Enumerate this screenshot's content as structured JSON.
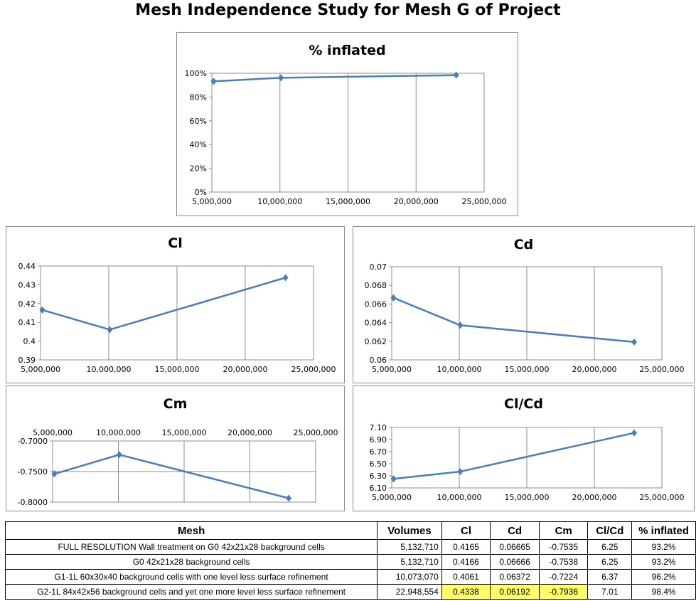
{
  "title": "Mesh Independence Study for Mesh G of Project",
  "chart_data": [
    {
      "id": "inflated",
      "type": "line",
      "title": "% inflated",
      "x": [
        5132710,
        5132710,
        10073070,
        22948554
      ],
      "values": [
        93.2,
        93.2,
        96.2,
        98.4
      ],
      "xlim": [
        5000000,
        25000000
      ],
      "xticks": [
        "5,000,000",
        "10,000,000",
        "15,000,000",
        "20,000,000",
        "25,000,000"
      ],
      "ylim": [
        0,
        100
      ],
      "yticks": [
        "0%",
        "20%",
        "40%",
        "60%",
        "80%",
        "100%"
      ],
      "color": "#4a7ebb"
    },
    {
      "id": "cl",
      "type": "line",
      "title": "Cl",
      "x": [
        5132710,
        5132710,
        10073070,
        22948554
      ],
      "values": [
        0.4165,
        0.4166,
        0.4061,
        0.4338
      ],
      "xlim": [
        5000000,
        25000000
      ],
      "xticks": [
        "5,000,000",
        "10,000,000",
        "15,000,000",
        "20,000,000",
        "25,000,000"
      ],
      "ylim": [
        0.39,
        0.44
      ],
      "yticks": [
        "0.39",
        "0.4",
        "0.41",
        "0.42",
        "0.43",
        "0.44"
      ],
      "color": "#4a7ebb"
    },
    {
      "id": "cd",
      "type": "line",
      "title": "Cd",
      "x": [
        5132710,
        5132710,
        10073070,
        22948554
      ],
      "values": [
        0.06665,
        0.06666,
        0.06372,
        0.06192
      ],
      "xlim": [
        5000000,
        25000000
      ],
      "xticks": [
        "5,000,000",
        "10,000,000",
        "15,000,000",
        "20,000,000",
        "25,000,000"
      ],
      "ylim": [
        0.06,
        0.07
      ],
      "yticks": [
        "0.06",
        "0.062",
        "0.064",
        "0.066",
        "0.068",
        "0.07"
      ],
      "color": "#4a7ebb"
    },
    {
      "id": "cm",
      "type": "line",
      "title": "Cm",
      "x": [
        5132710,
        5132710,
        10073070,
        22948554
      ],
      "values": [
        -0.7535,
        -0.7538,
        -0.7224,
        -0.7936
      ],
      "xlim": [
        5000000,
        25000000
      ],
      "xticks": [
        "5,000,000",
        "10,000,000",
        "15,000,000",
        "20,000,000",
        "25,000,000"
      ],
      "ylim": [
        -0.8,
        -0.7
      ],
      "yticks": [
        "-0.8000",
        "-0.7500",
        "-0.7000"
      ],
      "color": "#4a7ebb"
    },
    {
      "id": "clcd",
      "type": "line",
      "title": "Cl/Cd",
      "x": [
        5132710,
        5132710,
        10073070,
        22948554
      ],
      "values": [
        6.25,
        6.25,
        6.37,
        7.01
      ],
      "xlim": [
        5000000,
        25000000
      ],
      "xticks": [
        "5,000,000",
        "10,000,000",
        "15,000,000",
        "20,000,000",
        "25,000,000"
      ],
      "ylim": [
        6.1,
        7.1
      ],
      "yticks": [
        "6.10",
        "6.30",
        "6.50",
        "6.70",
        "6.90",
        "7.10"
      ],
      "color": "#4a7ebb"
    }
  ],
  "table": {
    "headers": [
      "Mesh",
      "Volumes",
      "Cl",
      "Cd",
      "Cm",
      "Cl/Cd",
      "% inflated"
    ],
    "rows": [
      [
        "FULL RESOLUTION Wall treatment on G0 42x21x28 background cells",
        "5,132,710",
        "0.4165",
        "0.06665",
        "-0.7535",
        "6.25",
        "93.2%"
      ],
      [
        "G0 42x21x28 background cells",
        "5,132,710",
        "0.4166",
        "0.06666",
        "-0.7538",
        "6.25",
        "93.2%"
      ],
      [
        "G1-1L 60x30x40 background cells with one level less surface refinement",
        "10,073,070",
        "0.4061",
        "0.06372",
        "-0.7224",
        "6.37",
        "96.2%"
      ],
      [
        "G2-1L 84x42x56 background cells and yet one more level less surface refinement",
        "22,948,554",
        "0.4338",
        "0.06192",
        "-0.7936",
        "7.01",
        "98.4%"
      ]
    ],
    "highlight_color": "#ffff66"
  }
}
